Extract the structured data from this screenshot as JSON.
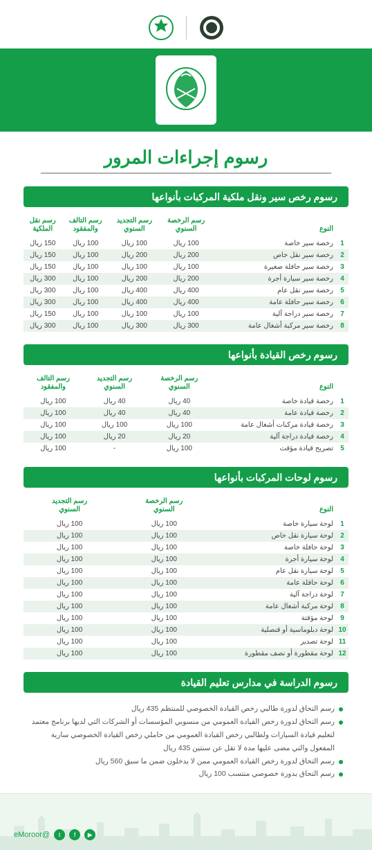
{
  "colors": {
    "brand_green": "#149e4a",
    "row_alt": "#e9f3ec",
    "text": "#444",
    "muted": "#555",
    "footer_bg": "#eef6f0"
  },
  "page_title": "رسوم إجراءات المرور",
  "section1": {
    "heading": "رسوم رخص سير ونقل ملكية المركبات بأنواعها",
    "columns": [
      "النوع",
      "رسم الرخصة السنوي",
      "رسم التجديد السنوي",
      "رسم التالف والمفقود",
      "رسم نقل الملكية"
    ],
    "rows": [
      {
        "n": "1",
        "name": "رخصة سير خاصة",
        "c": [
          "100 ريال",
          "100 ريال",
          "100 ريال",
          "150 ريال"
        ]
      },
      {
        "n": "2",
        "name": "رخصة سير نقل خاص",
        "c": [
          "200 ريال",
          "200 ريال",
          "100 ريال",
          "150 ريال"
        ]
      },
      {
        "n": "3",
        "name": "رخصة سير حافلة صغيرة",
        "c": [
          "100 ريال",
          "100 ريال",
          "100 ريال",
          "150 ريال"
        ]
      },
      {
        "n": "4",
        "name": "رخصة سير سيارة أجرة",
        "c": [
          "200 ريال",
          "200 ريال",
          "100 ريال",
          "300 ريال"
        ]
      },
      {
        "n": "5",
        "name": "رخصة سير نقل عام",
        "c": [
          "400 ريال",
          "400 ريال",
          "100 ريال",
          "300 ريال"
        ]
      },
      {
        "n": "6",
        "name": "رخصة سير حافلة عامة",
        "c": [
          "400 ريال",
          "400 ريال",
          "100 ريال",
          "300 ريال"
        ]
      },
      {
        "n": "7",
        "name": "رخصة سير دراجة آلية",
        "c": [
          "100 ريال",
          "100 ريال",
          "100 ريال",
          "150 ريال"
        ]
      },
      {
        "n": "8",
        "name": "رخصة سير مركبة أشغال عامة",
        "c": [
          "300 ريال",
          "300 ريال",
          "100 ريال",
          "300 ريال"
        ]
      }
    ]
  },
  "section2": {
    "heading": "رسوم رخص القيادة بأنواعها",
    "columns": [
      "النوع",
      "رسم الرخصة السنوي",
      "رسم التجديد السنوي",
      "رسم التالف والمفقود"
    ],
    "rows": [
      {
        "n": "1",
        "name": "رخصة قيادة خاصة",
        "c": [
          "40 ريال",
          "40 ريال",
          "100 ريال"
        ]
      },
      {
        "n": "2",
        "name": "رخصة قيادة عامة",
        "c": [
          "40 ريال",
          "40 ريال",
          "100 ريال"
        ]
      },
      {
        "n": "3",
        "name": "رخصة قيادة مركبات أشغال عامة",
        "c": [
          "100 ريال",
          "100 ريال",
          "100 ريال"
        ]
      },
      {
        "n": "4",
        "name": "رخصة قيادة دراجة آلية",
        "c": [
          "20 ريال",
          "20 ريال",
          "100 ريال"
        ]
      },
      {
        "n": "5",
        "name": "تصريح قيادة مؤقت",
        "c": [
          "100 ريال",
          "-",
          "100 ريال"
        ]
      }
    ]
  },
  "section3": {
    "heading": "رسوم لوحات المركبات بأنواعها",
    "columns": [
      "النوع",
      "رسم الرخصة السنوي",
      "رسم التجديد السنوي"
    ],
    "rows": [
      {
        "n": "1",
        "name": "لوحة سيارة خاصة",
        "c": [
          "100 ريال",
          "100 ريال"
        ]
      },
      {
        "n": "2",
        "name": "لوحة سيارة نقل خاص",
        "c": [
          "100 ريال",
          "100 ريال"
        ]
      },
      {
        "n": "3",
        "name": "لوحة حافلة خاصة",
        "c": [
          "100 ريال",
          "100 ريال"
        ]
      },
      {
        "n": "4",
        "name": "لوحة سيارة أجرة",
        "c": [
          "100 ريال",
          "100 ريال"
        ]
      },
      {
        "n": "5",
        "name": "لوحة سيارة نقل عام",
        "c": [
          "100 ريال",
          "100 ريال"
        ]
      },
      {
        "n": "6",
        "name": "لوحة حافلة عامة",
        "c": [
          "100 ريال",
          "100 ريال"
        ]
      },
      {
        "n": "7",
        "name": "لوحة دراجة آلية",
        "c": [
          "100 ريال",
          "100 ريال"
        ]
      },
      {
        "n": "8",
        "name": "لوحة مركبة أشغال عامة",
        "c": [
          "100 ريال",
          "100 ريال"
        ]
      },
      {
        "n": "9",
        "name": "لوحة مؤقتة",
        "c": [
          "100 ريال",
          "100 ريال"
        ]
      },
      {
        "n": "10",
        "name": "لوحة دبلوماسية أو قنصلية",
        "c": [
          "100 ريال",
          "100 ريال"
        ]
      },
      {
        "n": "11",
        "name": "لوحة تصدير",
        "c": [
          "100 ريال",
          "100 ريال"
        ]
      },
      {
        "n": "12",
        "name": "لوحة مقطورة أو نصف مقطورة",
        "c": [
          "100 ريال",
          "100 ريال"
        ]
      }
    ]
  },
  "section4": {
    "heading": "رسوم الدراسة في مدارس تعليم القيادة",
    "bullets": [
      "رسم التحاق لدورة طالبي رخص القيادة الخصوصي للمنتظم 435 ريال",
      "رسم التحاق لدورة رخص القيادة العمومي من منسوبي المؤسسات أو الشركات التي لديها برنامج معتمد لتعليم قيادة السيارات ولطالبي رخص القيادة العمومي من حاملي رخص القيادة الخصوصي سارية المفعول والتي مضى عليها مدة لا تقل عن سنتين 435 ريال",
      "رسم التحاق لدورة رخص القيادة العمومي ممن لا يدخلون ضمن ما سبق 560 ريال",
      "رسم التحاق بدورة خصوصي منتسب 100 ريال"
    ]
  },
  "footer_handle": "@eMoroor"
}
